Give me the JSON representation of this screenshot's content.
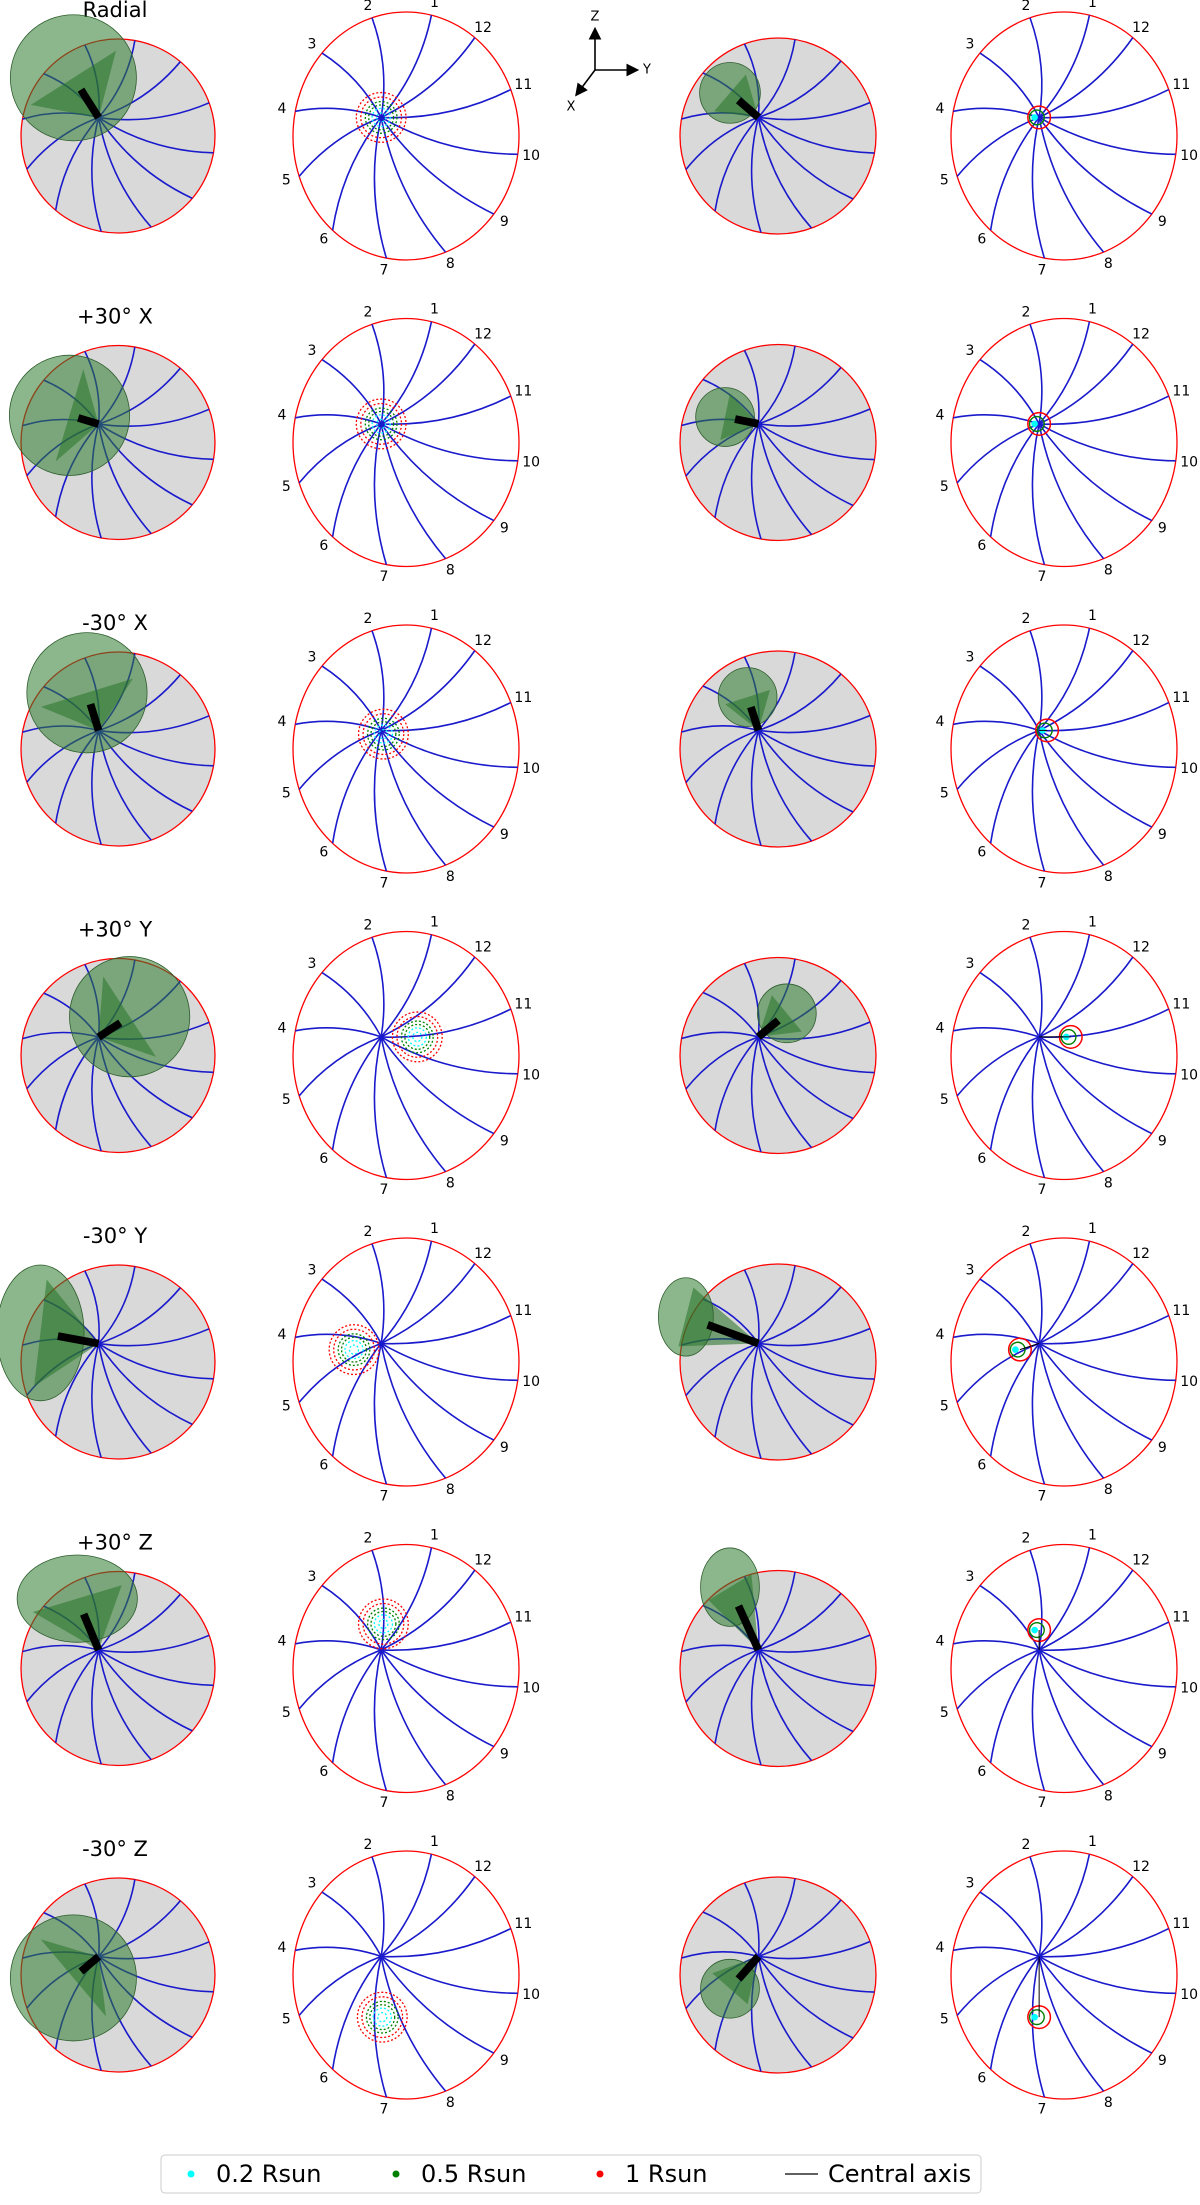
{
  "row_labels": [
    "Radial",
    "+30° X",
    "-30° X",
    "+30° Y",
    "-30° Y",
    "+30° Z",
    "-30° Z"
  ],
  "clock_labels": [
    "1",
    "2",
    "3",
    "4",
    "5",
    "6",
    "7",
    "8",
    "9",
    "10",
    "11",
    "12"
  ],
  "axis_labels": {
    "z": "Z",
    "y": "Y",
    "x": "X"
  },
  "legend": [
    "0.2 Rsun",
    "0.5 Rsun",
    "1 Rsun",
    "Central axis"
  ]
}
